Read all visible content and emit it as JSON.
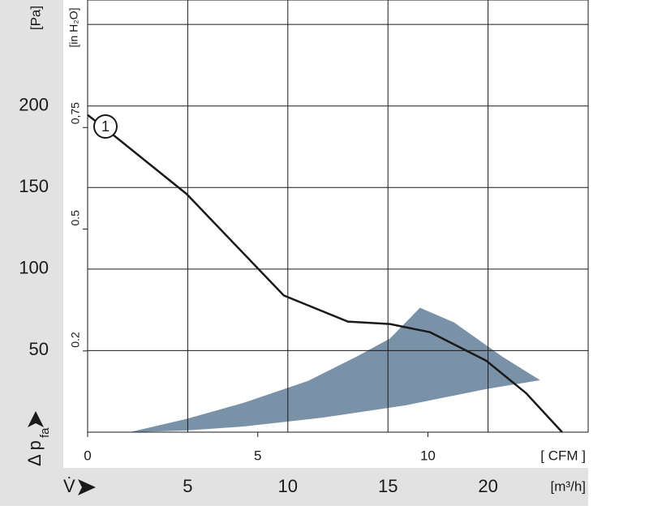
{
  "chart_data": {
    "type": "line",
    "y_label": "[Pa]",
    "y2_label": "[in H₂O]",
    "y_axis_symbol": "Δ p",
    "y_axis_symbol_sub": "fa",
    "x_label": "[m³/h]",
    "x2_label": "[ CFM ]",
    "x_axis_symbol": "V̇",
    "xlim": [
      0,
      25
    ],
    "xticks": [
      5,
      10,
      15,
      20
    ],
    "x2lim": [
      0,
      14.71
    ],
    "x2ticks": [
      0,
      5,
      10
    ],
    "ylim": [
      0,
      265
    ],
    "yticks": [
      50,
      100,
      150,
      200
    ],
    "y_gridlines": [
      50,
      100,
      150,
      200,
      250
    ],
    "y2lim": [
      0,
      1.064
    ],
    "y2ticks": [
      0.2,
      0.5,
      {
        "value": 0.75,
        "label": "0,75"
      }
    ],
    "grid": true,
    "series": [
      {
        "name": "1",
        "color": "#1a1a1a",
        "x": [
          0,
          0.9,
          4.95,
          9.8,
          13.0,
          15.1,
          17.1,
          19.9,
          21.9,
          23.7
        ],
        "values": [
          194.5,
          186,
          146,
          83.8,
          67.8,
          66.3,
          61.3,
          43.9,
          23.9,
          0
        ]
      }
    ],
    "operating_range": {
      "color": "#7a92a8",
      "x": [
        2.1,
        4.9,
        7.8,
        11.0,
        13.45,
        15.1,
        16.6,
        18.3,
        20.7,
        22.6,
        19.9,
        15.9,
        11.8,
        7.8,
        4.9
      ],
      "y": [
        0,
        8,
        18,
        31.4,
        46.4,
        57.4,
        76.3,
        67.3,
        46.4,
        31.9,
        26.4,
        16.5,
        9,
        3.5,
        1
      ]
    }
  }
}
